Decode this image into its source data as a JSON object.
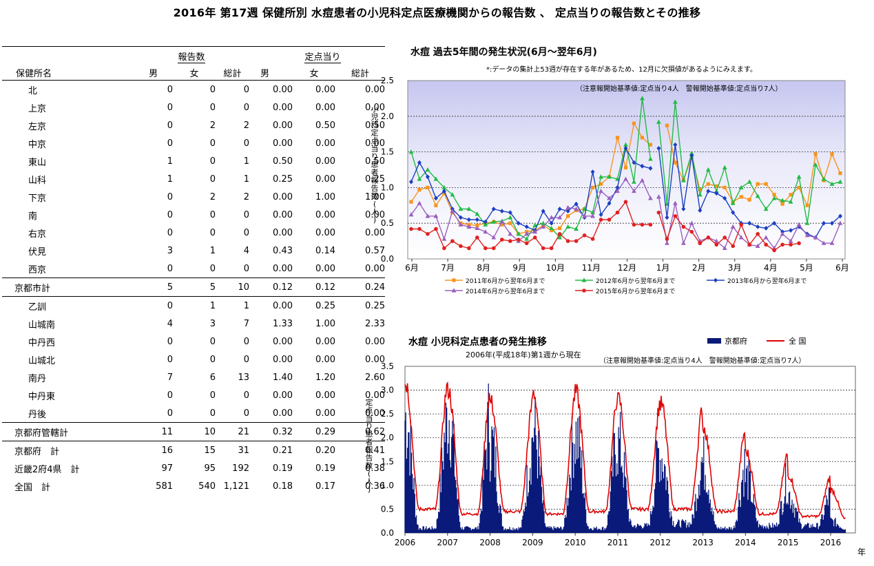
{
  "page_title": "2016年 第17週 保健所別 水痘患者の小児科定点医療機関からの報告数 、 定点当りの報告数とその推移",
  "table": {
    "group_headers": {
      "reports": "報告数",
      "per_site": "定点当り"
    },
    "col_headers": [
      "保健所名",
      "男",
      "女",
      "総計",
      "男",
      "女",
      "総計"
    ],
    "rows": [
      {
        "name": "北",
        "m": "0",
        "f": "0",
        "t": "0",
        "dm": "0.00",
        "df": "0.00",
        "dt": "0.00",
        "indent": true
      },
      {
        "name": "上京",
        "m": "0",
        "f": "0",
        "t": "0",
        "dm": "0.00",
        "df": "0.00",
        "dt": "0.00",
        "indent": true
      },
      {
        "name": "左京",
        "m": "0",
        "f": "2",
        "t": "2",
        "dm": "0.00",
        "df": "0.50",
        "dt": "0.50",
        "indent": true
      },
      {
        "name": "中京",
        "m": "0",
        "f": "0",
        "t": "0",
        "dm": "0.00",
        "df": "0.00",
        "dt": "0.00",
        "indent": true
      },
      {
        "name": "東山",
        "m": "1",
        "f": "0",
        "t": "1",
        "dm": "0.50",
        "df": "0.00",
        "dt": "0.50",
        "indent": true
      },
      {
        "name": "山科",
        "m": "1",
        "f": "0",
        "t": "1",
        "dm": "0.25",
        "df": "0.00",
        "dt": "0.25",
        "indent": true
      },
      {
        "name": "下京",
        "m": "0",
        "f": "2",
        "t": "2",
        "dm": "0.00",
        "df": "1.00",
        "dt": "1.00",
        "indent": true
      },
      {
        "name": "南",
        "m": "0",
        "f": "0",
        "t": "0",
        "dm": "0.00",
        "df": "0.00",
        "dt": "0.00",
        "indent": true
      },
      {
        "name": "右京",
        "m": "0",
        "f": "0",
        "t": "0",
        "dm": "0.00",
        "df": "0.00",
        "dt": "0.00",
        "indent": true
      },
      {
        "name": "伏見",
        "m": "3",
        "f": "1",
        "t": "4",
        "dm": "0.43",
        "df": "0.14",
        "dt": "0.57",
        "indent": true
      },
      {
        "name": "西京",
        "m": "0",
        "f": "0",
        "t": "0",
        "dm": "0.00",
        "df": "0.00",
        "dt": "0.00",
        "indent": true
      },
      {
        "name": "京都市計",
        "m": "5",
        "f": "5",
        "t": "10",
        "dm": "0.12",
        "df": "0.12",
        "dt": "0.24",
        "indent": false,
        "top": true,
        "bottom": true
      },
      {
        "name": "乙訓",
        "m": "0",
        "f": "1",
        "t": "1",
        "dm": "0.00",
        "df": "0.25",
        "dt": "0.25",
        "indent": true
      },
      {
        "name": "山城南",
        "m": "4",
        "f": "3",
        "t": "7",
        "dm": "1.33",
        "df": "1.00",
        "dt": "2.33",
        "indent": true
      },
      {
        "name": "中丹西",
        "m": "0",
        "f": "0",
        "t": "0",
        "dm": "0.00",
        "df": "0.00",
        "dt": "0.00",
        "indent": true
      },
      {
        "name": "山城北",
        "m": "0",
        "f": "0",
        "t": "0",
        "dm": "0.00",
        "df": "0.00",
        "dt": "0.00",
        "indent": true
      },
      {
        "name": "南丹",
        "m": "7",
        "f": "6",
        "t": "13",
        "dm": "1.40",
        "df": "1.20",
        "dt": "2.60",
        "indent": true
      },
      {
        "name": "中丹東",
        "m": "0",
        "f": "0",
        "t": "0",
        "dm": "0.00",
        "df": "0.00",
        "dt": "0.00",
        "indent": true
      },
      {
        "name": "丹後",
        "m": "0",
        "f": "0",
        "t": "0",
        "dm": "0.00",
        "df": "0.00",
        "dt": "0.00",
        "indent": true
      },
      {
        "name": "京都府管轄計",
        "m": "11",
        "f": "10",
        "t": "21",
        "dm": "0.32",
        "df": "0.29",
        "dt": "0.62",
        "indent": false,
        "top": true,
        "bottom": true
      },
      {
        "name": "京都府　計",
        "m": "16",
        "f": "15",
        "t": "31",
        "dm": "0.21",
        "df": "0.20",
        "dt": "0.41",
        "indent": false
      },
      {
        "name": "近畿2府4県　計",
        "m": "97",
        "f": "95",
        "t": "192",
        "dm": "0.19",
        "df": "0.19",
        "dt": "0.38",
        "indent": false
      },
      {
        "name": "全国　計",
        "m": "581",
        "f": "540",
        "t": "1,121",
        "dm": "0.18",
        "df": "0.17",
        "dt": "0.36",
        "indent": false
      }
    ]
  },
  "chart_data": [
    {
      "type": "line",
      "title": "水痘  過去5年間の発生状況(6月～翌年6月)",
      "note": "*:データの集計上53週が存在する年があるため、12月に欠損値があるようにみえます。",
      "threshold_note": "（注意報開始基準値:定点当り4人　警報開始基準値:定点当り7人）",
      "ylabel": "小児科定点当り患者報告数(人)",
      "ylim": [
        0,
        2.5
      ],
      "yticks": [
        "0.0",
        "0.5",
        "1.0",
        "1.5",
        "2.0",
        "2.5"
      ],
      "month_labels": [
        "6月",
        "7月",
        "8月",
        "9月",
        "10月",
        "11月",
        "12月",
        "1月",
        "2月",
        "3月",
        "4月",
        "5月",
        "6月"
      ],
      "x_weeks": 53,
      "gap_after_week": 29,
      "plot_colors": {
        "bg_top": "#c6c6f0",
        "bg_mid": "#eaeafa",
        "bg_bottom": "#ffffff"
      },
      "series": [
        {
          "name": "2011年6月から翌年6月まで",
          "color": "#f7941d",
          "marker": "square",
          "values": [
            0.8,
            0.97,
            1.0,
            0.75,
            0.92,
            0.65,
            0.5,
            0.48,
            0.47,
            0.5,
            0.52,
            0.48,
            0.5,
            0.35,
            0.38,
            0.4,
            0.47,
            0.4,
            0.43,
            0.6,
            0.68,
            0.7,
            1.0,
            1.05,
            1.15,
            1.7,
            1.28,
            1.9,
            1.7,
            1.6,
            null,
            1.87,
            1.35,
            1.1,
            1.43,
            0.97,
            1.05,
            1.02,
            1.0,
            0.8,
            0.87,
            0.83,
            1.05,
            1.05,
            0.9,
            0.77,
            0.9,
            1.0,
            0.75,
            1.47,
            1.1,
            1.47,
            1.2
          ]
        },
        {
          "name": "2012年6月から翌年6月まで",
          "color": "#22bb44",
          "marker": "triangle",
          "values": [
            1.5,
            1.12,
            1.25,
            1.12,
            1.0,
            0.9,
            0.7,
            0.7,
            0.63,
            0.48,
            0.52,
            0.53,
            0.58,
            0.35,
            0.28,
            0.47,
            0.5,
            0.43,
            0.3,
            0.45,
            0.42,
            0.7,
            0.65,
            1.15,
            1.15,
            1.12,
            1.6,
            1.08,
            2.25,
            1.4,
            1.92,
            0.77,
            2.2,
            1.1,
            1.48,
            0.9,
            1.25,
            0.95,
            1.28,
            0.78,
            1.0,
            1.08,
            0.88,
            0.7,
            0.85,
            0.82,
            0.8,
            1.15,
            0.5,
            1.32,
            1.12,
            1.05,
            1.08
          ]
        },
        {
          "name": "2013年6月から翌年6月まで",
          "color": "#1c3fc0",
          "marker": "diamond",
          "values": [
            1.08,
            1.35,
            1.15,
            0.85,
            0.95,
            0.7,
            0.58,
            0.55,
            0.55,
            0.52,
            0.7,
            0.67,
            0.65,
            0.5,
            0.45,
            0.4,
            0.67,
            0.5,
            0.7,
            0.67,
            0.77,
            0.58,
            1.22,
            0.62,
            0.78,
            1.0,
            1.55,
            1.35,
            1.3,
            1.27,
            1.55,
            0.58,
            1.6,
            0.7,
            1.45,
            0.68,
            0.95,
            0.92,
            0.85,
            0.65,
            0.5,
            0.5,
            0.45,
            0.43,
            0.5,
            0.38,
            0.4,
            0.45,
            0.35,
            0.3,
            0.5,
            0.5,
            0.6
          ]
        },
        {
          "name": "2014年6月から翌年6月まで",
          "color": "#9b5fc0",
          "marker": "triangle",
          "values": [
            0.62,
            0.78,
            0.6,
            0.6,
            0.28,
            0.67,
            0.48,
            0.45,
            0.43,
            0.38,
            0.3,
            0.52,
            0.35,
            0.25,
            0.35,
            0.38,
            0.45,
            0.58,
            0.58,
            0.72,
            0.7,
            0.6,
            0.6,
            0.95,
            0.85,
            0.95,
            1.12,
            0.95,
            1.1,
            0.85,
            0.87,
            0.22,
            0.78,
            0.22,
            0.5,
            0.25,
            0.3,
            0.25,
            0.15,
            0.45,
            0.3,
            0.2,
            0.18,
            0.3,
            0.15,
            0.35,
            0.25,
            0.48,
            0.33,
            0.3,
            0.22,
            0.22,
            0.5
          ]
        },
        {
          "name": "2015年6月から翌年6月まで",
          "color": "#e02020",
          "marker": "circle",
          "values": [
            0.42,
            0.42,
            0.35,
            0.42,
            0.15,
            0.25,
            0.18,
            0.15,
            0.3,
            0.15,
            0.15,
            0.27,
            0.25,
            0.27,
            0.22,
            0.3,
            0.15,
            0.15,
            0.35,
            0.25,
            0.25,
            0.33,
            0.28,
            0.55,
            0.55,
            0.65,
            0.8,
            0.48,
            0.48,
            0.48,
            0.65,
            0.28,
            0.6,
            0.45,
            0.38,
            0.22,
            0.3,
            0.2,
            0.3,
            0.18,
            0.48,
            0.2,
            0.35,
            0.2,
            0.12,
            0.2,
            0.2,
            0.22,
            null,
            null,
            null,
            null,
            null
          ]
        }
      ]
    },
    {
      "type": "area",
      "title": "水痘  小児科定点患者の発生推移",
      "subtitle": "2006年(平成18年)第1週から現在",
      "threshold_note": "（注意報開始基準値:定点当り4人　警報開始基準値:定点当り7人）",
      "ylabel": "定点当り患者報告数(人)",
      "xlabel": "年",
      "ylim": [
        0,
        3.5
      ],
      "yticks": [
        "0.0",
        "0.5",
        "1.0",
        "1.5",
        "2.0",
        "2.5",
        "3.0",
        "3.5"
      ],
      "years": [
        "2006",
        "2007",
        "2008",
        "2009",
        "2010",
        "2011",
        "2012",
        "2013",
        "2014",
        "2015",
        "2016"
      ],
      "legend": [
        {
          "name": "京都府",
          "color": "#0a1a7a"
        },
        {
          "name": "全 国",
          "color": "#e00000"
        }
      ],
      "series_kyoto_peaks": [
        {
          "name": "京都府",
          "annual_peak_values": [
            2.4,
            2.5,
            1.9,
            2.15,
            2.05,
            1.85,
            1.6,
            1.45,
            1.15,
            0.8,
            0.25
          ],
          "annual_trough_values": [
            0.1,
            0.1,
            0.1,
            0.1,
            0.1,
            0.15,
            0.2,
            0.1,
            0.15,
            0.15,
            0.1
          ]
        },
        {
          "name": "全 国",
          "annual_peak_values": [
            3.15,
            3.0,
            2.75,
            2.95,
            2.95,
            2.8,
            2.7,
            2.2,
            1.7,
            1.2,
            0.9
          ],
          "annual_trough_values": [
            0.5,
            0.4,
            0.45,
            0.4,
            0.45,
            0.5,
            0.5,
            0.45,
            0.4,
            0.35,
            0.3
          ]
        }
      ]
    }
  ]
}
